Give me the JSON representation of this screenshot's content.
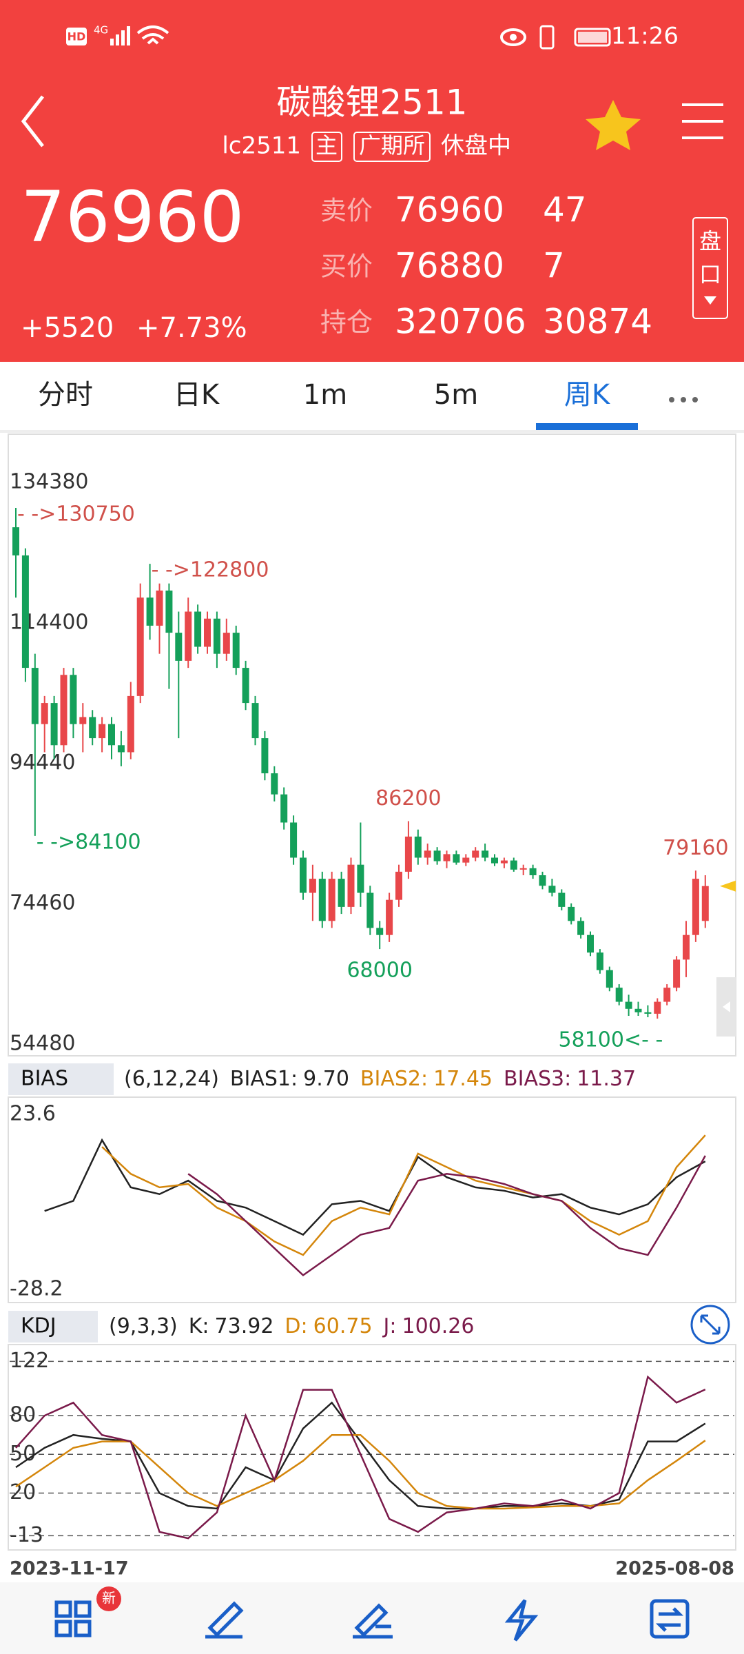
{
  "status_bar": {
    "hd": "HD",
    "network": "4G",
    "time": "11:26"
  },
  "header": {
    "title": "碳酸锂2511",
    "code": "lc2511",
    "tags": [
      "主",
      "广期所"
    ],
    "status": "休盘中"
  },
  "quote": {
    "last": "76960",
    "change": "+5520",
    "change_pct": "+7.73%",
    "rows": [
      {
        "label": "卖价",
        "value": "76960",
        "volume": "47"
      },
      {
        "label": "买价",
        "value": "76880",
        "volume": "7"
      },
      {
        "label": "持仓",
        "value": "320706",
        "volume": "30874"
      }
    ],
    "panel_button": [
      "盘",
      "口"
    ]
  },
  "tabs": {
    "items": [
      "分时",
      "日K",
      "1m",
      "5m",
      "周K"
    ],
    "active": 4
  },
  "x_axis": {
    "dates": [
      "2023-11-17",
      "2025-08-08"
    ]
  },
  "chart_data": [
    {
      "type": "candlestick",
      "ylim": [
        54480,
        134380
      ],
      "yticks": [
        134380,
        114400,
        94440,
        74460,
        54480
      ],
      "up_color": "#e8474a",
      "down_color": "#14a05a",
      "open": [
        128000,
        124000,
        108000,
        100000,
        103000,
        97000,
        107000,
        100000,
        101000,
        98000,
        100000,
        97000,
        96000,
        104000,
        118000,
        114000,
        119000,
        113000,
        109000,
        116000,
        111000,
        115000,
        110000,
        113000,
        108000,
        103000,
        98000,
        93000,
        90000,
        86000,
        81000,
        76000,
        78000,
        72000,
        78000,
        74000,
        80000,
        76000,
        71000,
        70000,
        75000,
        79000,
        84000,
        81000,
        82000,
        80500,
        81500,
        80300,
        81000,
        82000,
        81000,
        80200,
        80600,
        79300,
        79500,
        78500,
        77000,
        76000,
        74000,
        72000,
        70000,
        67500,
        65000,
        62500,
        60500,
        59500,
        59000,
        58800,
        60500,
        62500,
        66500,
        70000,
        72000
      ],
      "high": [
        130750,
        125000,
        110000,
        104000,
        104000,
        108000,
        108000,
        103000,
        102000,
        101000,
        101000,
        99000,
        106000,
        120000,
        122800,
        120000,
        120000,
        116000,
        118000,
        117000,
        116000,
        116000,
        115000,
        114000,
        109000,
        104000,
        99000,
        94000,
        91000,
        87000,
        82000,
        80000,
        79000,
        79000,
        79000,
        81000,
        86000,
        77000,
        72000,
        76000,
        80000,
        86200,
        85000,
        83000,
        82500,
        82000,
        82000,
        81500,
        82500,
        83000,
        81500,
        81000,
        81000,
        80000,
        80000,
        79000,
        78000,
        76500,
        74500,
        72500,
        70500,
        68000,
        65500,
        63000,
        61500,
        60500,
        60000,
        61000,
        63000,
        67000,
        72000,
        79160,
        78500
      ],
      "low": [
        118000,
        106000,
        84100,
        96000,
        95000,
        96000,
        98000,
        96000,
        97000,
        96000,
        95000,
        94000,
        95000,
        103000,
        112000,
        110000,
        105000,
        98000,
        108000,
        110000,
        110000,
        108000,
        109000,
        107000,
        102000,
        97000,
        92000,
        89000,
        85000,
        80000,
        75000,
        72000,
        71000,
        71000,
        73000,
        73000,
        74000,
        70000,
        68000,
        69000,
        74000,
        78000,
        80000,
        80000,
        80000,
        79500,
        80000,
        79800,
        80500,
        80500,
        79800,
        79500,
        79000,
        78500,
        78000,
        76500,
        75500,
        73500,
        71500,
        69500,
        67000,
        64500,
        62000,
        60000,
        58500,
        58500,
        58300,
        58100,
        60000,
        62000,
        64000,
        69000,
        71000
      ],
      "close": [
        124000,
        108000,
        100000,
        103000,
        97000,
        107000,
        100000,
        101000,
        98000,
        100000,
        97000,
        96000,
        104000,
        118000,
        114000,
        119000,
        113000,
        109000,
        116000,
        111000,
        115000,
        110000,
        113000,
        108000,
        103000,
        98000,
        93000,
        90000,
        86000,
        81000,
        76000,
        78000,
        72000,
        78000,
        74000,
        80000,
        76000,
        71000,
        70000,
        75000,
        79000,
        84000,
        81000,
        82000,
        80500,
        81500,
        80300,
        81000,
        82000,
        81000,
        80200,
        80600,
        79300,
        79500,
        78500,
        77000,
        76000,
        74000,
        72000,
        70000,
        67500,
        65000,
        62500,
        60500,
        59500,
        59000,
        58800,
        60500,
        62500,
        66500,
        70000,
        78000,
        76960
      ],
      "annotations": [
        {
          "label": "- ->130750",
          "value": 130750,
          "index": 0,
          "color": "#d0504a"
        },
        {
          "label": "- ->122800",
          "value": 122800,
          "index": 14,
          "color": "#d0504a"
        },
        {
          "label": "86200",
          "value": 86200,
          "index": 41,
          "color": "#d0504a"
        },
        {
          "label": "79160",
          "value": 79160,
          "index": 71,
          "color": "#d0504a"
        },
        {
          "label": "- ->84100",
          "value": 84100,
          "index": 2,
          "color": "#14a05a"
        },
        {
          "label": "68000",
          "value": 68000,
          "index": 38,
          "color": "#14a05a"
        },
        {
          "label": "58100<- -",
          "value": 58100,
          "index": 67,
          "color": "#14a05a"
        }
      ]
    },
    {
      "type": "line",
      "title": "BIAS",
      "params": "(6,12,24)",
      "ylim": [
        -28.2,
        23.6
      ],
      "yticks": [
        23.6,
        -28.2
      ],
      "grid": false,
      "x": [
        0,
        3,
        6,
        9,
        12,
        15,
        18,
        21,
        24,
        27,
        30,
        33,
        36,
        39,
        42,
        45,
        48,
        51,
        54,
        57,
        60,
        63,
        66,
        69,
        72
      ],
      "series": [
        {
          "name": "BIAS1:",
          "value_label": "9.70",
          "color": "#222222",
          "values": [
            null,
            -5,
            -2,
            16,
            2,
            0,
            4,
            -2,
            -4,
            -8,
            -12,
            -3,
            -2,
            -5,
            11,
            5,
            2,
            1,
            -1,
            0,
            -4,
            -6,
            -3,
            5,
            9.7
          ]
        },
        {
          "name": "BIAS2:",
          "value_label": "17.45",
          "color": "#d4860b",
          "values": [
            null,
            null,
            null,
            14,
            6,
            2,
            3,
            -4,
            -8,
            -14,
            -18,
            -8,
            -4,
            -6,
            12,
            8,
            4,
            2,
            0,
            -2,
            -8,
            -12,
            -8,
            8,
            17.45
          ]
        },
        {
          "name": "BIAS3:",
          "value_label": "11.37",
          "color": "#7a1a4a",
          "values": [
            null,
            null,
            null,
            null,
            null,
            null,
            6,
            0,
            -8,
            -16,
            -24,
            -18,
            -12,
            -10,
            4,
            6,
            5,
            3,
            0,
            -2,
            -10,
            -16,
            -18,
            -4,
            11.37
          ]
        }
      ]
    },
    {
      "type": "line",
      "title": "KDJ",
      "params": "(9,3,3)",
      "ylim": [
        -24,
        135
      ],
      "yticks": [
        122,
        80,
        50,
        20,
        -13
      ],
      "grid": true,
      "x": [
        0,
        3,
        6,
        9,
        12,
        15,
        18,
        21,
        24,
        27,
        30,
        33,
        36,
        39,
        42,
        45,
        48,
        51,
        54,
        57,
        60,
        63,
        66,
        69,
        72
      ],
      "series": [
        {
          "name": "K:",
          "value_label": "73.92",
          "color": "#222222",
          "values": [
            40,
            55,
            65,
            62,
            60,
            20,
            10,
            8,
            40,
            30,
            70,
            90,
            60,
            30,
            10,
            8,
            8,
            10,
            10,
            12,
            10,
            15,
            60,
            60,
            73.92
          ]
        },
        {
          "name": "D:",
          "value_label": "60.75",
          "color": "#d4860b",
          "values": [
            25,
            40,
            55,
            60,
            60,
            40,
            20,
            10,
            20,
            30,
            45,
            65,
            65,
            45,
            20,
            10,
            8,
            8,
            9,
            10,
            10,
            12,
            30,
            45,
            60.75
          ]
        },
        {
          "name": "J:",
          "value_label": "100.26",
          "color": "#7a1a4a",
          "values": [
            55,
            80,
            90,
            65,
            60,
            -10,
            -15,
            5,
            80,
            30,
            100,
            100,
            50,
            0,
            -10,
            5,
            8,
            12,
            10,
            15,
            8,
            20,
            110,
            90,
            100.26
          ]
        }
      ]
    }
  ],
  "bottom_nav": {
    "badge": "新"
  }
}
